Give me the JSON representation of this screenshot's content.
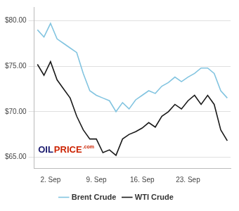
{
  "chart_data": {
    "type": "line",
    "x": [
      0,
      1,
      2,
      3,
      4,
      5,
      6,
      7,
      8,
      9,
      10,
      11,
      12,
      13,
      14,
      15,
      16,
      17,
      18,
      19,
      20,
      21,
      22,
      23,
      24,
      25,
      26,
      27,
      28,
      29
    ],
    "series": [
      {
        "name": "Brent Crude",
        "color": "#82c4e0",
        "values": [
          79.0,
          78.2,
          79.7,
          78.0,
          77.5,
          77.0,
          76.5,
          74.2,
          72.3,
          71.8,
          71.5,
          71.2,
          70.0,
          71.0,
          70.3,
          71.3,
          71.8,
          72.3,
          72.0,
          72.8,
          73.2,
          73.8,
          73.3,
          73.8,
          74.2,
          74.8,
          74.8,
          74.2,
          72.3,
          71.5
        ]
      },
      {
        "name": "WTI Crude",
        "color": "#1a1a1a",
        "values": [
          75.2,
          74.0,
          75.5,
          73.5,
          72.5,
          71.5,
          69.5,
          68.0,
          67.0,
          67.0,
          65.5,
          65.8,
          65.2,
          67.0,
          67.5,
          67.8,
          68.2,
          68.8,
          68.3,
          69.5,
          70.0,
          70.8,
          70.3,
          71.2,
          71.8,
          70.8,
          71.8,
          70.8,
          68.0,
          66.8
        ]
      }
    ],
    "xlim": [
      -0.5,
      29.5
    ],
    "xticks": [
      {
        "value": 2,
        "label": "2. Sep"
      },
      {
        "value": 9,
        "label": "9. Sep"
      },
      {
        "value": 16,
        "label": "16. Sep"
      },
      {
        "value": 23,
        "label": "23. Sep"
      }
    ],
    "ylim": [
      63.8,
      81.5
    ],
    "yticks": [
      {
        "value": 65,
        "label": "$65.00"
      },
      {
        "value": 70,
        "label": "$70.00"
      },
      {
        "value": 75,
        "label": "$75.00"
      },
      {
        "value": 80,
        "label": "$80.00"
      }
    ],
    "grid": "y",
    "legend": "bottom",
    "annotations": [
      {
        "text": "OIL",
        "color": "#1a1a6e"
      },
      {
        "text": "PRICE",
        "color": "#cc2200"
      },
      {
        "text": ".com",
        "color": "#cc2200"
      }
    ]
  }
}
